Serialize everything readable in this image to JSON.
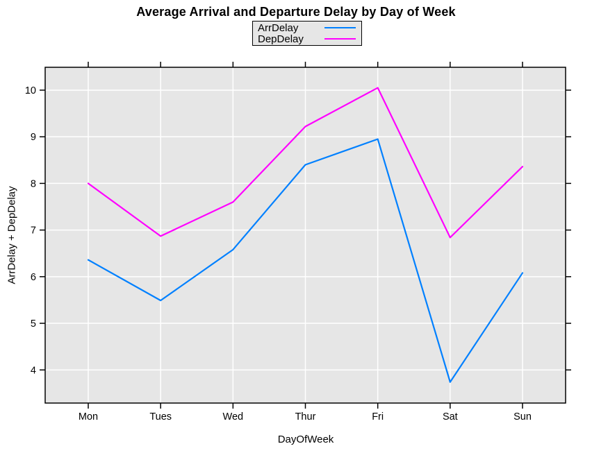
{
  "chart_data": {
    "type": "line",
    "title": "Average Arrival and Departure Delay by Day of Week",
    "xlabel": "DayOfWeek",
    "ylabel": "ArrDelay + DepDelay",
    "categories": [
      "Mon",
      "Tues",
      "Wed",
      "Thur",
      "Fri",
      "Sat",
      "Sun"
    ],
    "series": [
      {
        "name": "ArrDelay",
        "color": "#0080FF",
        "values": [
          6.36,
          5.49,
          6.58,
          8.4,
          8.95,
          3.74,
          6.08
        ]
      },
      {
        "name": "DepDelay",
        "color": "#FF00FF",
        "values": [
          8.0,
          6.87,
          7.6,
          9.22,
          10.05,
          6.84,
          8.36
        ]
      }
    ],
    "yticks": [
      4,
      5,
      6,
      7,
      8,
      9,
      10
    ],
    "ylim": [
      3.29,
      10.49
    ],
    "grid": true,
    "grid_color": "#FFFFFF",
    "plot_background": "#E6E6E6",
    "axis_color": "#000000",
    "legend_position": "top-center"
  }
}
